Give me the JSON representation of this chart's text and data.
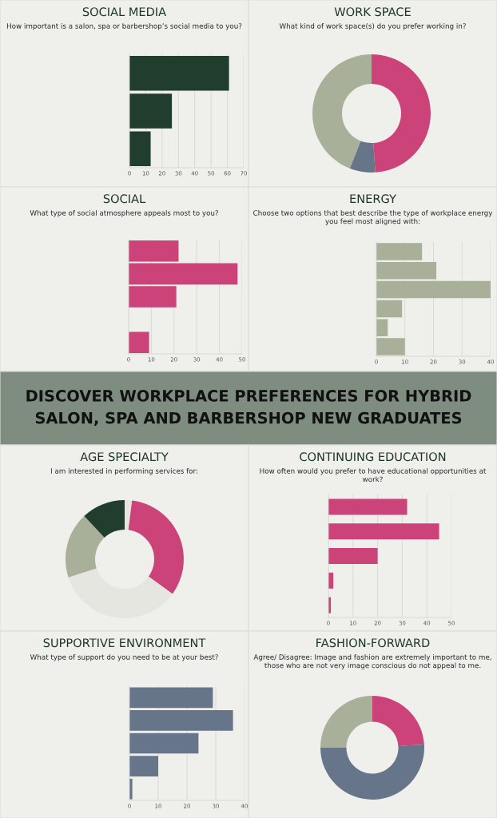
{
  "chart_data": [
    {
      "type": "bar",
      "orientation": "horizontal",
      "title": "SOCIAL MEDIA",
      "subtitle": "How important is a salon, spa or barbershop’s social media to you?",
      "categories": [
        null,
        null,
        null
      ],
      "values": [
        61,
        26,
        13
      ],
      "color": "#213d2e",
      "xlim": [
        0,
        70
      ],
      "xticks": [
        0,
        10,
        20,
        30,
        40,
        50,
        60,
        70
      ],
      "grid": "x",
      "tick_labels": "x"
    },
    {
      "type": "donut",
      "title": "WORK SPACE",
      "subtitle": "What kind of work space(s) do you prefer working in?",
      "categories": [
        null,
        null,
        null
      ],
      "values": [
        49,
        7,
        44
      ],
      "colors": [
        "#cc4379",
        "#677589",
        "#a8b09a"
      ]
    },
    {
      "type": "bar",
      "orientation": "horizontal",
      "title": "SOCIAL",
      "subtitle": "What type of social atmosphere appeals most to you?",
      "categories": [
        null,
        null,
        null,
        null,
        null
      ],
      "values": [
        22,
        48,
        21,
        0,
        9
      ],
      "color": "#cc4379",
      "xlim": [
        0,
        50
      ],
      "xticks": [
        0,
        10,
        20,
        30,
        40,
        50
      ],
      "grid": "x",
      "tick_labels": "x"
    },
    {
      "type": "bar",
      "orientation": "horizontal",
      "title": "ENERGY",
      "subtitle": "Choose two options that best describe the type of workplace energy you feel most aligned with:",
      "categories": [
        null,
        null,
        null,
        null,
        null,
        null
      ],
      "values": [
        16,
        21,
        40,
        9,
        4,
        10
      ],
      "color": "#a8b09a",
      "xlim": [
        0,
        40
      ],
      "xticks": [
        0,
        10,
        20,
        30,
        40
      ],
      "grid": "x",
      "tick_labels": "x"
    },
    {
      "type": "other",
      "title": "DISCOVER WORKPLACE PREFERENCES FOR HYBRID SALON, SPA AND BARBERSHOP NEW GRADUATES"
    },
    {
      "type": "donut",
      "title": "AGE SPECIALTY",
      "subtitle": "I am interested in performing services for:",
      "categories": [
        null,
        null,
        null,
        null,
        null
      ],
      "values": [
        2,
        33,
        35,
        18,
        12
      ],
      "colors": [
        "#e6e6e0",
        "#cc4379",
        "#e6e6e0",
        "#a8b09a",
        "#213d2e"
      ]
    },
    {
      "type": "bar",
      "orientation": "horizontal",
      "title": "CONTINUING EDUCATION",
      "subtitle": "How often would you prefer to have educational opportunities at work?",
      "categories": [
        null,
        null,
        null,
        null,
        null
      ],
      "values": [
        32,
        45,
        20,
        2,
        1
      ],
      "color": "#cc4379",
      "xlim": [
        0,
        50
      ],
      "xticks": [
        0,
        10,
        20,
        30,
        40,
        50
      ],
      "grid": "x",
      "tick_labels": "x"
    },
    {
      "type": "bar",
      "orientation": "horizontal",
      "title": "SUPPORTIVE ENVIRONMENT",
      "subtitle": "What type of support do you need to be at your best?",
      "categories": [
        null,
        null,
        null,
        null,
        null
      ],
      "values": [
        29,
        36,
        24,
        10,
        1
      ],
      "color": "#667589",
      "xlim": [
        0,
        40
      ],
      "xticks": [
        0,
        10,
        20,
        30,
        40
      ],
      "grid": "x",
      "tick_labels": "x"
    },
    {
      "type": "donut",
      "title": "FASHION-FORWARD",
      "subtitle": "Agree/ Disagree: Image and fashion are extremely important to me, those who are not very image conscious do not appeal to me.",
      "categories": [
        null,
        null,
        null
      ],
      "values": [
        24,
        51,
        25
      ],
      "colors": [
        "#cc4379",
        "#667589",
        "#a8b09a"
      ]
    }
  ]
}
